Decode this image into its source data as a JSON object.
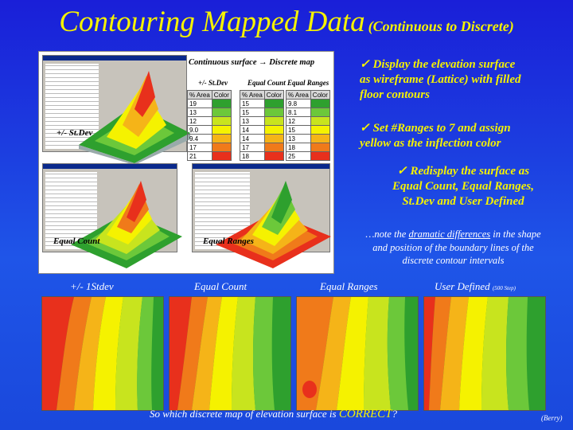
{
  "title": {
    "main": "Contouring Mapped Data",
    "sub": "(Continuous to Discrete)"
  },
  "figure": {
    "header": "Continuous surface → Discrete map",
    "col_labels": [
      "+/- St.Dev",
      "Equal Count",
      "Equal Ranges"
    ],
    "legend_header": [
      "% Area",
      "Color"
    ],
    "legend_values": {
      "stdev": [
        "19",
        "13",
        "12",
        "9.0",
        "9.4",
        "17",
        "21"
      ],
      "equal_count": [
        "15",
        "15",
        "13",
        "14",
        "14",
        "17",
        "18"
      ],
      "equal_ranges": [
        "9.8",
        "8.1",
        "12",
        "15",
        "13",
        "18",
        "25"
      ]
    },
    "legend_colors": [
      "#2ea02e",
      "#6cc83a",
      "#c8e41e",
      "#f5f200",
      "#f5b418",
      "#f07a1a",
      "#e8301c"
    ],
    "panel_labels": {
      "stdev": "+/- St.Dev",
      "equal_count": "Equal Count",
      "equal_ranges": "Equal Ranges"
    }
  },
  "bullets": [
    {
      "check": "✓",
      "lines": [
        "Display the elevation surface",
        "as wireframe (Lattice) with filled",
        "floor contours"
      ]
    },
    {
      "check": "✓",
      "lines": [
        "Set #Ranges to 7 and assign",
        "yellow as the inflection color"
      ]
    },
    {
      "check": "✓",
      "lines": [
        "Redisplay the surface as",
        "Equal Count, Equal Ranges,",
        "St.Dev and User Defined"
      ]
    }
  ],
  "note": {
    "pre": "…note the ",
    "emph": "dramatic differences",
    "post": " in the shape and position of the boundary lines of the discrete contour intervals"
  },
  "maps": [
    {
      "label": "+/- 1Stdev",
      "small": ""
    },
    {
      "label": "Equal Count",
      "small": ""
    },
    {
      "label": "Equal Ranges",
      "small": ""
    },
    {
      "label": "User Defined",
      "small": "(500 Step)"
    }
  ],
  "question": {
    "pre": "So which discrete map of elevation surface is ",
    "emph": "CORRECT",
    "post": "?"
  },
  "credit": "(Berry)"
}
